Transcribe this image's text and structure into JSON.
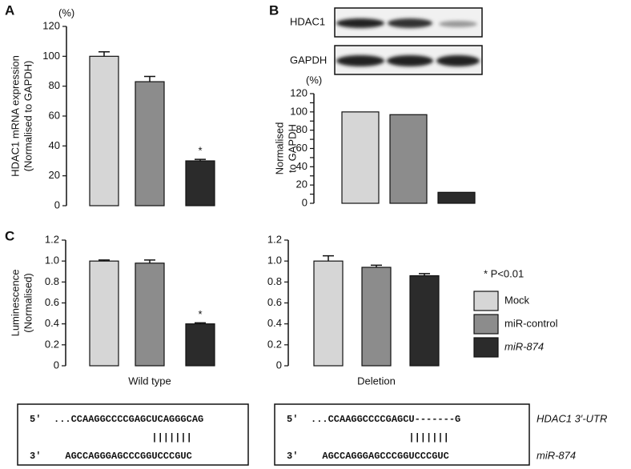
{
  "panel_labels": [
    "A",
    "B",
    "C"
  ],
  "blot": {
    "rows": [
      "HDAC1",
      "GAPDH"
    ]
  },
  "significance_note": "* P<0.01",
  "chart_data": [
    {
      "type": "bar",
      "y_unit": "(%)",
      "ylabel": [
        "HDAC1 mRNA expression",
        "(Normalised to GAPDH)"
      ],
      "categories": [
        null
      ],
      "ylim": [
        0,
        120
      ],
      "yticks": [
        0,
        20,
        40,
        60,
        80,
        100,
        120
      ],
      "annotation": "*",
      "series": [
        {
          "name": "Mock",
          "color": "#d6d6d6",
          "values": [
            100
          ],
          "errors": [
            3
          ]
        },
        {
          "name": "miR-control",
          "color": "#8c8c8c",
          "values": [
            83
          ],
          "errors": [
            3.5
          ]
        },
        {
          "name": "miR-874",
          "color": "#2b2b2b",
          "values": [
            30
          ],
          "errors": [
            1
          ]
        }
      ]
    },
    {
      "type": "bar",
      "y_unit": "(%)",
      "ylabel": [
        "Normalised",
        "to GAPDH"
      ],
      "categories": [
        null
      ],
      "ylim": [
        0,
        120
      ],
      "yticks": [
        0,
        10,
        20,
        30,
        40,
        50,
        60,
        70,
        80,
        90,
        100,
        110,
        120
      ],
      "series": [
        {
          "name": "Mock",
          "color": "#d6d6d6",
          "values": [
            100
          ]
        },
        {
          "name": "miR-control",
          "color": "#8c8c8c",
          "values": [
            97
          ]
        },
        {
          "name": "miR-874",
          "color": "#2b2b2b",
          "values": [
            12
          ]
        }
      ]
    },
    {
      "type": "bar",
      "xlabel": "Wild type",
      "ylabel": [
        "Luminescence",
        "(Normalised)"
      ],
      "categories": [
        null
      ],
      "ylim": [
        0,
        1.2
      ],
      "annotation": "*",
      "yticks": [
        0,
        0.2,
        0.4,
        0.6,
        0.8,
        {
          "value": 1,
          "label": "1.0"
        },
        1.2
      ],
      "series": [
        {
          "name": "Mock",
          "color": "#d6d6d6",
          "values": [
            1.0
          ],
          "errors": [
            0.01
          ]
        },
        {
          "name": "miR-control",
          "color": "#8c8c8c",
          "values": [
            0.98
          ],
          "errors": [
            0.03
          ]
        },
        {
          "name": "miR-874",
          "color": "#2b2b2b",
          "values": [
            0.4
          ],
          "errors": [
            0.01
          ]
        }
      ]
    },
    {
      "type": "bar",
      "xlabel": "Deletion",
      "categories": [
        null
      ],
      "ylim": [
        0,
        1.2
      ],
      "yticks": [
        0,
        0.2,
        0.4,
        0.6,
        0.8,
        {
          "value": 1,
          "label": "1.0"
        },
        1.2
      ],
      "series": [
        {
          "name": "Mock",
          "color": "#d6d6d6",
          "values": [
            1.0
          ],
          "errors": [
            0.05
          ]
        },
        {
          "name": "miR-control",
          "color": "#8c8c8c",
          "values": [
            0.94
          ],
          "errors": [
            0.02
          ]
        },
        {
          "name": "miR-874",
          "color": "#2b2b2b",
          "values": [
            0.86
          ],
          "errors": [
            0.02
          ]
        }
      ]
    }
  ],
  "sequences": {
    "utr_label": "HDAC1 3′-UTR",
    "mir_label": "miR-874",
    "boxes": [
      {
        "utr_end": "5′",
        "utr": "...CCAAGGCCCCGAGCUCAGGGCAG",
        "pairs": "|||||||",
        "mir_end": "3′",
        "mir": "AGCCAGGGAGCCCGGUCCCGUC"
      },
      {
        "utr_end": "5′",
        "utr": "...CCAAGGCCCCGAGCU-------G",
        "pairs": "|||||||",
        "mir_end": "3′",
        "mir": "AGCCAGGGAGCCCGGUCCCGUC"
      }
    ]
  }
}
